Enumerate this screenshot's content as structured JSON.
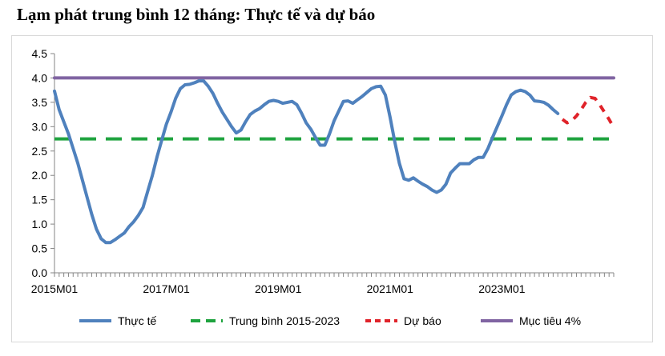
{
  "title": "Lạm phát trung bình 12 tháng: Thực tế và dự báo",
  "chart_data": {
    "type": "line",
    "ylim": [
      0,
      4.5
    ],
    "yticks": [
      "0.0",
      "0.5",
      "1.0",
      "1.5",
      "2.0",
      "2.5",
      "3.0",
      "3.5",
      "4.0",
      "4.5"
    ],
    "xticks": [
      "2015M01",
      "2017M01",
      "2019M01",
      "2021M01",
      "2023M01"
    ],
    "grid": false,
    "legend": "bottom",
    "series": [
      {
        "name": "Thực tế",
        "color": "#4f81bd",
        "style": "solid",
        "points": [
          [
            "2015M01",
            3.73
          ],
          [
            "2015M02",
            3.35
          ],
          [
            "2015M03",
            3.1
          ],
          [
            "2015M04",
            2.85
          ],
          [
            "2015M05",
            2.55
          ],
          [
            "2015M06",
            2.25
          ],
          [
            "2015M07",
            1.9
          ],
          [
            "2015M08",
            1.55
          ],
          [
            "2015M09",
            1.2
          ],
          [
            "2015M10",
            0.9
          ],
          [
            "2015M11",
            0.7
          ],
          [
            "2015M12",
            0.62
          ],
          [
            "2016M01",
            0.62
          ],
          [
            "2016M02",
            0.68
          ],
          [
            "2016M03",
            0.75
          ],
          [
            "2016M04",
            0.82
          ],
          [
            "2016M05",
            0.95
          ],
          [
            "2016M06",
            1.05
          ],
          [
            "2016M07",
            1.18
          ],
          [
            "2016M08",
            1.34
          ],
          [
            "2016M09",
            1.67
          ],
          [
            "2016M10",
            2.0
          ],
          [
            "2016M11",
            2.38
          ],
          [
            "2016M12",
            2.72
          ],
          [
            "2017M01",
            3.05
          ],
          [
            "2017M02",
            3.3
          ],
          [
            "2017M03",
            3.58
          ],
          [
            "2017M04",
            3.78
          ],
          [
            "2017M05",
            3.86
          ],
          [
            "2017M06",
            3.87
          ],
          [
            "2017M07",
            3.9
          ],
          [
            "2017M08",
            3.94
          ],
          [
            "2017M09",
            3.94
          ],
          [
            "2017M10",
            3.83
          ],
          [
            "2017M11",
            3.68
          ],
          [
            "2017M12",
            3.48
          ],
          [
            "2018M01",
            3.3
          ],
          [
            "2018M02",
            3.15
          ],
          [
            "2018M03",
            3.0
          ],
          [
            "2018M04",
            2.87
          ],
          [
            "2018M05",
            2.93
          ],
          [
            "2018M06",
            3.1
          ],
          [
            "2018M07",
            3.25
          ],
          [
            "2018M08",
            3.32
          ],
          [
            "2018M09",
            3.37
          ],
          [
            "2018M10",
            3.45
          ],
          [
            "2018M11",
            3.52
          ],
          [
            "2018M12",
            3.54
          ],
          [
            "2019M01",
            3.52
          ],
          [
            "2019M02",
            3.48
          ],
          [
            "2019M03",
            3.5
          ],
          [
            "2019M04",
            3.52
          ],
          [
            "2019M05",
            3.45
          ],
          [
            "2019M06",
            3.28
          ],
          [
            "2019M07",
            3.08
          ],
          [
            "2019M08",
            2.95
          ],
          [
            "2019M09",
            2.78
          ],
          [
            "2019M10",
            2.62
          ],
          [
            "2019M11",
            2.62
          ],
          [
            "2019M12",
            2.85
          ],
          [
            "2020M01",
            3.12
          ],
          [
            "2020M02",
            3.32
          ],
          [
            "2020M03",
            3.52
          ],
          [
            "2020M04",
            3.53
          ],
          [
            "2020M05",
            3.48
          ],
          [
            "2020M06",
            3.55
          ],
          [
            "2020M07",
            3.62
          ],
          [
            "2020M08",
            3.7
          ],
          [
            "2020M09",
            3.78
          ],
          [
            "2020M10",
            3.82
          ],
          [
            "2020M11",
            3.83
          ],
          [
            "2020M12",
            3.65
          ],
          [
            "2021M01",
            3.2
          ],
          [
            "2021M02",
            2.7
          ],
          [
            "2021M03",
            2.25
          ],
          [
            "2021M04",
            1.93
          ],
          [
            "2021M05",
            1.9
          ],
          [
            "2021M06",
            1.95
          ],
          [
            "2021M07",
            1.88
          ],
          [
            "2021M08",
            1.82
          ],
          [
            "2021M09",
            1.77
          ],
          [
            "2021M10",
            1.7
          ],
          [
            "2021M11",
            1.65
          ],
          [
            "2021M12",
            1.7
          ],
          [
            "2022M01",
            1.82
          ],
          [
            "2022M02",
            2.05
          ],
          [
            "2022M03",
            2.15
          ],
          [
            "2022M04",
            2.24
          ],
          [
            "2022M05",
            2.24
          ],
          [
            "2022M06",
            2.24
          ],
          [
            "2022M07",
            2.32
          ],
          [
            "2022M08",
            2.37
          ],
          [
            "2022M09",
            2.37
          ],
          [
            "2022M10",
            2.55
          ],
          [
            "2022M11",
            2.78
          ],
          [
            "2022M12",
            3.0
          ],
          [
            "2023M01",
            3.22
          ],
          [
            "2023M02",
            3.45
          ],
          [
            "2023M03",
            3.65
          ],
          [
            "2023M04",
            3.72
          ],
          [
            "2023M05",
            3.75
          ],
          [
            "2023M06",
            3.72
          ],
          [
            "2023M07",
            3.65
          ],
          [
            "2023M08",
            3.53
          ],
          [
            "2023M09",
            3.52
          ],
          [
            "2023M10",
            3.5
          ],
          [
            "2023M11",
            3.44
          ],
          [
            "2023M12",
            3.35
          ],
          [
            "2024M01",
            3.27
          ]
        ]
      },
      {
        "name": "Trung bình 2015-2023",
        "color": "#1ea33e",
        "style": "dashed",
        "points": [
          [
            "2015M01",
            2.75
          ],
          [
            "2025M01",
            2.75
          ]
        ]
      },
      {
        "name": "Dự báo",
        "color": "#e0232a",
        "style": "dashed",
        "points": [
          [
            "2024M02",
            3.15
          ],
          [
            "2024M03",
            3.08
          ],
          [
            "2024M04",
            3.12
          ],
          [
            "2024M05",
            3.22
          ],
          [
            "2024M06",
            3.35
          ],
          [
            "2024M07",
            3.5
          ],
          [
            "2024M08",
            3.6
          ],
          [
            "2024M09",
            3.58
          ],
          [
            "2024M10",
            3.45
          ],
          [
            "2024M11",
            3.3
          ],
          [
            "2024M12",
            3.15
          ],
          [
            "2025M01",
            2.98
          ]
        ]
      },
      {
        "name": "Mục tiêu 4%",
        "color": "#8064a2",
        "style": "solid",
        "points": [
          [
            "2015M01",
            4.0
          ],
          [
            "2025M01",
            4.0
          ]
        ]
      }
    ]
  }
}
